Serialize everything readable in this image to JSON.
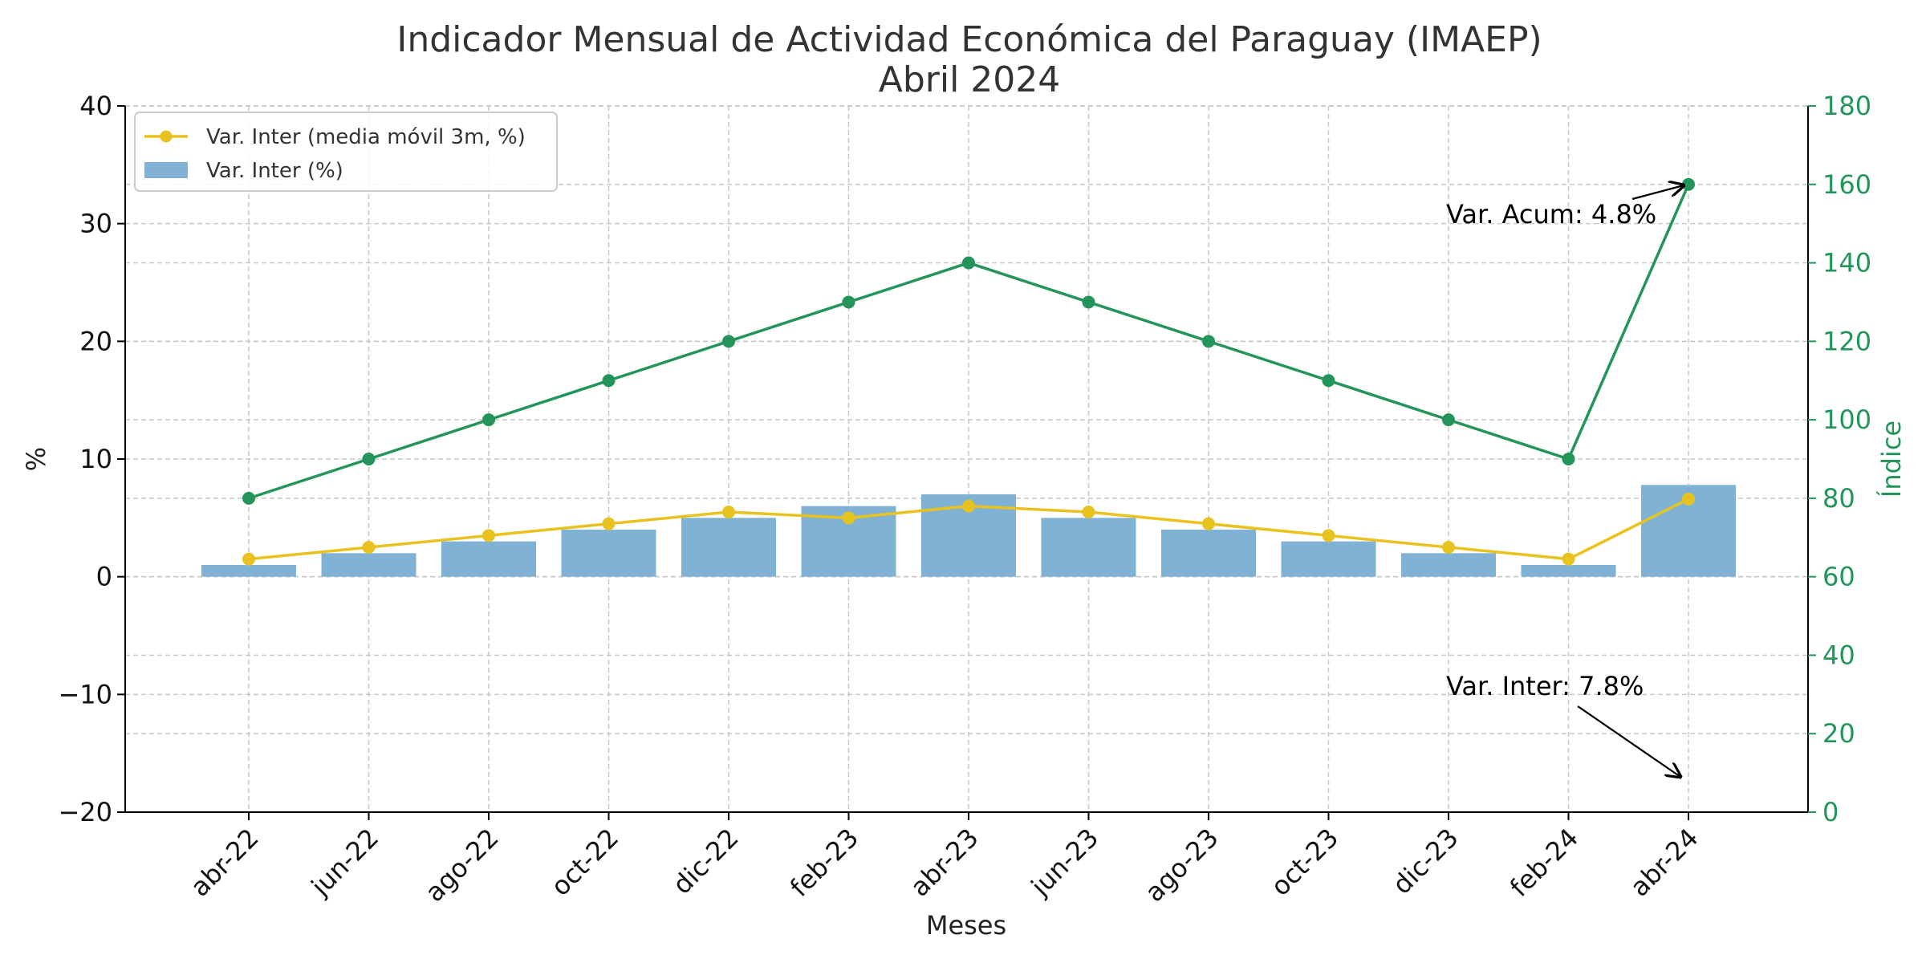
{
  "chart_data": {
    "type": "bar",
    "title": "Indicador Mensual de Actividad Económica del Paraguay (IMAEP)",
    "subtitle": "Abril 2024",
    "xlabel": "Meses",
    "ylabel": "%",
    "ylabel_right": "Índice",
    "categories": [
      "abr-22",
      "jun-22",
      "ago-22",
      "oct-22",
      "dic-22",
      "feb-23",
      "abr-23",
      "jun-23",
      "ago-23",
      "oct-23",
      "dic-23",
      "feb-24",
      "abr-24"
    ],
    "ylim": [
      -20,
      40
    ],
    "ylim_right": [
      0,
      180
    ],
    "yticks": [
      -20,
      -10,
      0,
      10,
      20,
      30,
      40
    ],
    "yticks_labels": [
      "−20",
      "−10",
      "0",
      "10",
      "20",
      "30",
      "40"
    ],
    "yticks_right": [
      0,
      20,
      40,
      60,
      80,
      100,
      120,
      140,
      160,
      180
    ],
    "grid": true,
    "legend_position": "top-left",
    "series": [
      {
        "name": "Var. Inter (%)",
        "type": "bar",
        "axis": "left",
        "color": "#7fb2d5",
        "values": [
          1,
          2,
          3,
          4,
          5,
          6,
          7,
          5,
          4,
          3,
          2,
          1,
          7.8
        ]
      },
      {
        "name": "Var. Inter (media móvil 3m, %)",
        "type": "line",
        "axis": "left",
        "color": "#e8c21e",
        "values": [
          1.5,
          2.5,
          3.5,
          4.5,
          5.5,
          5,
          6,
          5.5,
          4.5,
          3.5,
          2.5,
          1.5,
          6.6
        ]
      },
      {
        "type": "line",
        "axis": "right",
        "color": "#23955a",
        "values": [
          80,
          90,
          100,
          110,
          120,
          130,
          140,
          130,
          120,
          110,
          100,
          90,
          160
        ]
      }
    ],
    "annotations": [
      {
        "text": "Var. Acum: 4.8%"
      },
      {
        "text": "Var. Inter: 7.8%"
      }
    ]
  }
}
